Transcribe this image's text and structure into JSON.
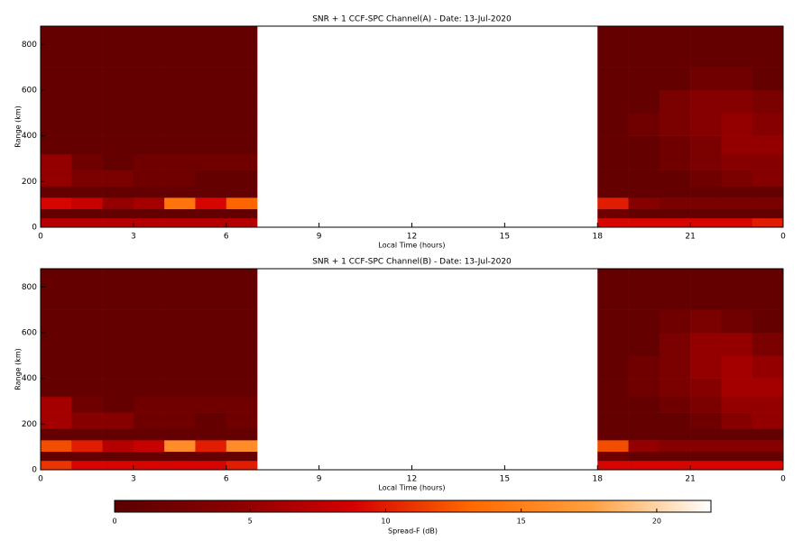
{
  "chart_data": [
    {
      "type": "heatmap",
      "title": "SNR + 1 CCF-SPC Channel(A) - Date: 13-Jul-2020",
      "xlabel": "Local Time (hours)",
      "ylabel": "Range (km)",
      "x_bins": [
        0,
        1,
        2,
        3,
        4,
        5,
        6,
        7,
        18,
        19,
        20,
        21,
        22,
        23,
        24
      ],
      "y_bins": [
        0,
        40,
        80,
        130,
        180,
        250,
        320,
        400,
        500,
        600,
        700,
        800,
        880
      ],
      "z": [
        [
          7,
          7,
          7,
          7,
          7,
          7,
          7,
          null,
          9,
          9,
          9,
          9,
          9,
          10
        ],
        [
          1,
          1,
          1,
          1,
          1,
          1,
          1,
          null,
          2,
          1,
          1,
          1,
          1,
          1
        ],
        [
          9,
          8,
          5,
          6,
          14,
          9,
          13,
          null,
          10,
          4,
          3,
          3,
          3,
          3
        ],
        [
          1,
          1,
          1,
          1,
          1,
          1,
          1,
          null,
          1,
          1,
          1,
          1,
          1,
          1
        ],
        [
          5,
          3,
          3,
          2,
          2,
          1,
          1,
          null,
          1,
          1,
          1,
          2,
          3,
          4
        ],
        [
          5,
          2,
          1,
          2,
          2,
          2,
          2,
          null,
          1,
          1,
          2,
          3,
          4,
          4
        ],
        [
          1,
          1,
          1,
          1,
          1,
          1,
          1,
          null,
          1,
          1,
          2,
          3,
          5,
          5
        ],
        [
          1,
          1,
          1,
          1,
          1,
          1,
          1,
          null,
          1,
          2,
          3,
          4,
          5,
          4
        ],
        [
          1,
          1,
          1,
          1,
          1,
          1,
          1,
          null,
          1,
          1,
          3,
          4,
          4,
          3
        ],
        [
          1,
          1,
          1,
          1,
          1,
          1,
          1,
          null,
          1,
          1,
          1,
          2,
          2,
          1
        ],
        [
          1,
          1,
          1,
          1,
          1,
          1,
          1,
          null,
          1,
          1,
          1,
          1,
          1,
          1
        ],
        [
          1,
          1,
          1,
          1,
          1,
          1,
          1,
          null,
          1,
          1,
          1,
          1,
          1,
          1
        ]
      ],
      "xlim": [
        0,
        24
      ],
      "xticks": [
        0,
        3,
        6,
        9,
        12,
        15,
        18,
        21,
        {
          "value": 24,
          "label": "0"
        }
      ],
      "ylim": [
        0,
        880
      ],
      "yticks": [
        0,
        200,
        400,
        600,
        800
      ]
    },
    {
      "type": "heatmap",
      "title": "SNR + 1 CCF-SPC Channel(B) - Date: 13-Jul-2020",
      "xlabel": "Local Time (hours)",
      "ylabel": "Range (km)",
      "x_bins": [
        0,
        1,
        2,
        3,
        4,
        5,
        6,
        7,
        18,
        19,
        20,
        21,
        22,
        23,
        24
      ],
      "y_bins": [
        0,
        40,
        80,
        130,
        180,
        250,
        320,
        400,
        500,
        600,
        700,
        800,
        880
      ],
      "z": [
        [
          11,
          9,
          9,
          9,
          9,
          9,
          10,
          null,
          9,
          9,
          9,
          9,
          9,
          9
        ],
        [
          1,
          1,
          1,
          1,
          1,
          1,
          1,
          null,
          2,
          1,
          1,
          1,
          1,
          1
        ],
        [
          12,
          10,
          7,
          8,
          16,
          10,
          16,
          null,
          12,
          5,
          4,
          4,
          4,
          4
        ],
        [
          1,
          1,
          1,
          1,
          1,
          1,
          1,
          null,
          1,
          1,
          1,
          1,
          1,
          1
        ],
        [
          6,
          4,
          4,
          2,
          2,
          1,
          2,
          null,
          1,
          1,
          1,
          2,
          4,
          5
        ],
        [
          6,
          2,
          1,
          2,
          2,
          2,
          2,
          null,
          1,
          1,
          2,
          3,
          5,
          5
        ],
        [
          1,
          1,
          1,
          1,
          1,
          1,
          1,
          null,
          1,
          2,
          3,
          4,
          6,
          6
        ],
        [
          1,
          1,
          1,
          1,
          1,
          1,
          1,
          null,
          1,
          2,
          3,
          5,
          6,
          5
        ],
        [
          1,
          1,
          1,
          1,
          1,
          1,
          1,
          null,
          1,
          1,
          3,
          5,
          5,
          3
        ],
        [
          1,
          1,
          1,
          1,
          1,
          1,
          1,
          null,
          1,
          1,
          2,
          3,
          2,
          1
        ],
        [
          1,
          1,
          1,
          1,
          1,
          1,
          1,
          null,
          1,
          1,
          1,
          1,
          1,
          1
        ],
        [
          1,
          1,
          1,
          1,
          1,
          1,
          1,
          null,
          1,
          1,
          1,
          1,
          1,
          1
        ]
      ],
      "xlim": [
        0,
        24
      ],
      "xticks": [
        0,
        3,
        6,
        9,
        12,
        15,
        18,
        21,
        {
          "value": 24,
          "label": "0"
        }
      ],
      "ylim": [
        0,
        880
      ],
      "yticks": [
        0,
        200,
        400,
        600,
        800
      ]
    }
  ],
  "colorbar": {
    "label": "Spread-F (dB)",
    "lim": [
      0,
      22
    ],
    "ticks": [
      0,
      5,
      10,
      15,
      20
    ],
    "colors": [
      "#5a0000",
      "#8a0000",
      "#d40000",
      "#ff6a00",
      "#ffa040",
      "#ffffff"
    ]
  }
}
